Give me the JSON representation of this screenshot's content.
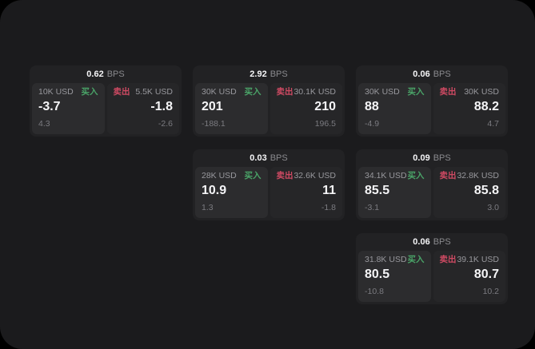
{
  "labels": {
    "unit": "BPS",
    "buy": "买入",
    "sell": "卖出"
  },
  "colors": {
    "window_background": "#1b1b1d",
    "card_background": "#222224",
    "buy_panel": "#2c2c2e",
    "sell_panel": "#262628",
    "buy_accent": "#4aa468",
    "sell_accent": "#cf4a63"
  },
  "cards": [
    {
      "bps": "0.62",
      "buy": {
        "size": "10K USD",
        "value": "-3.7",
        "delta": "4.3"
      },
      "sell": {
        "size": "5.5K USD",
        "value": "-1.8",
        "delta": "-2.6"
      }
    },
    {
      "bps": "2.92",
      "buy": {
        "size": "30K USD",
        "value": "201",
        "delta": "-188.1"
      },
      "sell": {
        "size": "30.1K USD",
        "value": "210",
        "delta": "196.5"
      }
    },
    {
      "bps": "0.06",
      "buy": {
        "size": "30K USD",
        "value": "88",
        "delta": "-4.9"
      },
      "sell": {
        "size": "30K USD",
        "value": "88.2",
        "delta": "4.7"
      }
    },
    {
      "bps": "0.03",
      "buy": {
        "size": "28K USD",
        "value": "10.9",
        "delta": "1.3"
      },
      "sell": {
        "size": "32.6K USD",
        "value": "11",
        "delta": "-1.8"
      }
    },
    {
      "bps": "0.09",
      "buy": {
        "size": "34.1K USD",
        "value": "85.5",
        "delta": "-3.1"
      },
      "sell": {
        "size": "32.8K USD",
        "value": "85.8",
        "delta": "3.0"
      }
    },
    {
      "bps": "0.06",
      "buy": {
        "size": "31.8K USD",
        "value": "80.5",
        "delta": "-10.8"
      },
      "sell": {
        "size": "39.1K USD",
        "value": "80.7",
        "delta": "10.2"
      }
    }
  ]
}
